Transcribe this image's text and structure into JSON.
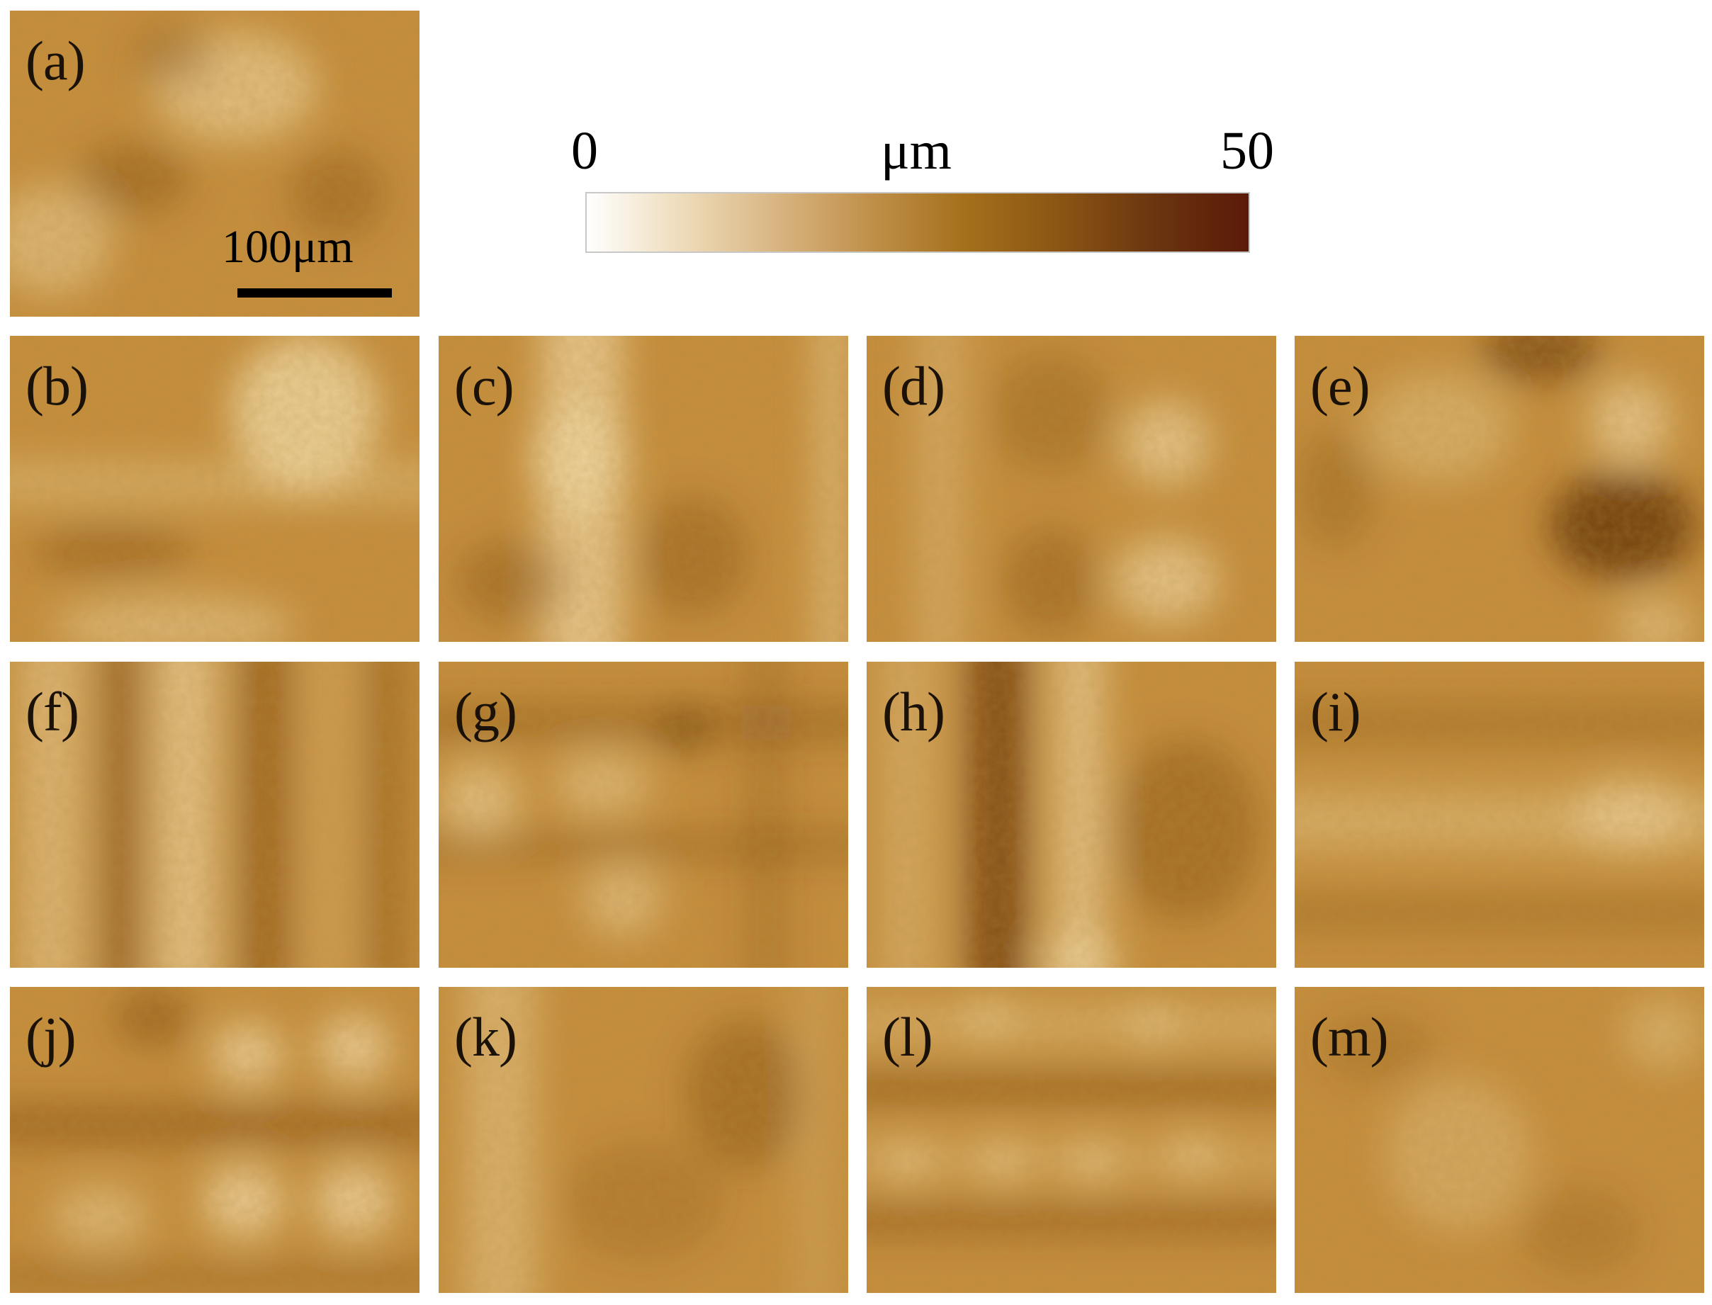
{
  "figure": {
    "panels": [
      {
        "id": "a",
        "label": "(a)",
        "pattern": "mottled-dark"
      },
      {
        "id": "b",
        "label": "(b)",
        "pattern": "light-upper-center-cloud"
      },
      {
        "id": "c",
        "label": "(c)",
        "pattern": "light-vertical-band-left"
      },
      {
        "id": "d",
        "label": "(d)",
        "pattern": "light-spots-right-column"
      },
      {
        "id": "e",
        "label": "(e)",
        "pattern": "dark-right-lower"
      },
      {
        "id": "f",
        "label": "(f)",
        "pattern": "vertical-stripes"
      },
      {
        "id": "g",
        "label": "(g)",
        "pattern": "grid-spots"
      },
      {
        "id": "h",
        "label": "(h)",
        "pattern": "dark-vertical-band-left"
      },
      {
        "id": "i",
        "label": "(i)",
        "pattern": "horizontal-light-band"
      },
      {
        "id": "j",
        "label": "(j)",
        "pattern": "horizontal-rows-bright-spots"
      },
      {
        "id": "k",
        "label": "(k)",
        "pattern": "soft-vertical"
      },
      {
        "id": "l",
        "label": "(l)",
        "pattern": "horizontal-stripes-dots"
      },
      {
        "id": "m",
        "label": "(m)",
        "pattern": "diffuse-uniform"
      }
    ],
    "scale_bar": {
      "label": "100μm"
    },
    "colorbar": {
      "min_label": "0",
      "unit_label": "μm",
      "max_label": "50",
      "colors": [
        "#ffffff",
        "#eedcba",
        "#d9b582",
        "#c0904a",
        "#a4701c",
        "#8a5513",
        "#6b3510",
        "#5a1a08"
      ]
    }
  }
}
